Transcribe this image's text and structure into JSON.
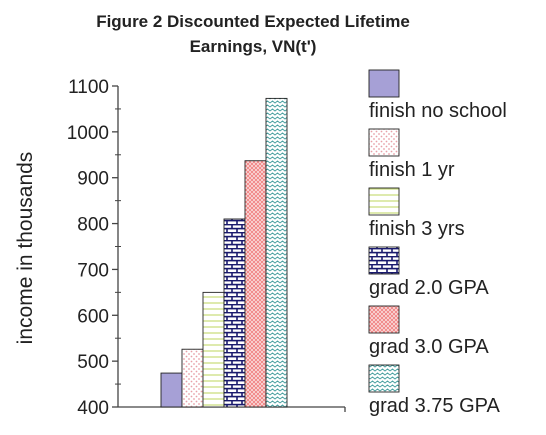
{
  "chart_data": {
    "type": "bar",
    "title": "Figure 2 Discounted Expected Lifetime",
    "subtitle": "Earnings, VN(t')",
    "xlabel": "",
    "ylabel": "income in thousands",
    "ylim": [
      400,
      1100
    ],
    "yticks": [
      400,
      500,
      600,
      700,
      800,
      900,
      1000,
      1100
    ],
    "grid": false,
    "legend_position": "right",
    "series": [
      {
        "name": "finish no school",
        "value": 474,
        "color": "#a6a0d6",
        "pattern": "solid"
      },
      {
        "name": "finish 1 yr",
        "value": 526,
        "color": "#e8a0a8",
        "pattern": "dots"
      },
      {
        "name": "finish 3 yrs",
        "value": 650,
        "color": "#cfe08a",
        "pattern": "hlines"
      },
      {
        "name": "grad 2.0 GPA",
        "value": 810,
        "color": "#1a1a6e",
        "pattern": "bricks"
      },
      {
        "name": "grad 3.0 GPA",
        "value": 937,
        "color": "#f09090",
        "pattern": "crosshatch"
      },
      {
        "name": "grad 3.75 GPA",
        "value": 1073,
        "color": "#4aa0a0",
        "pattern": "zigzag"
      }
    ]
  }
}
